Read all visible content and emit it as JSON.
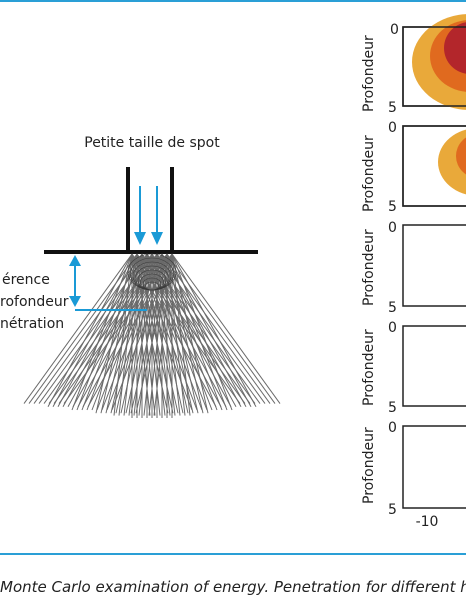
{
  "colors": {
    "accent_rule": "#2a9fd6",
    "arrow_blue": "#1a9ad6",
    "heat_dark": "#b3262b",
    "heat_mid": "#e06a1f",
    "heat_light": "#e9a93a"
  },
  "left_diagram": {
    "title": "Petite taille de spot",
    "annotation_lines": [
      "érence",
      "rofondeur",
      "nétration"
    ]
  },
  "plots": {
    "ylabel": "Profondeur",
    "y_top_tick": "0",
    "y_bottom_tick": "5",
    "x_left_tick": "-10"
  },
  "caption": "Monte Carlo examination of energy. Penetration for different hair"
}
